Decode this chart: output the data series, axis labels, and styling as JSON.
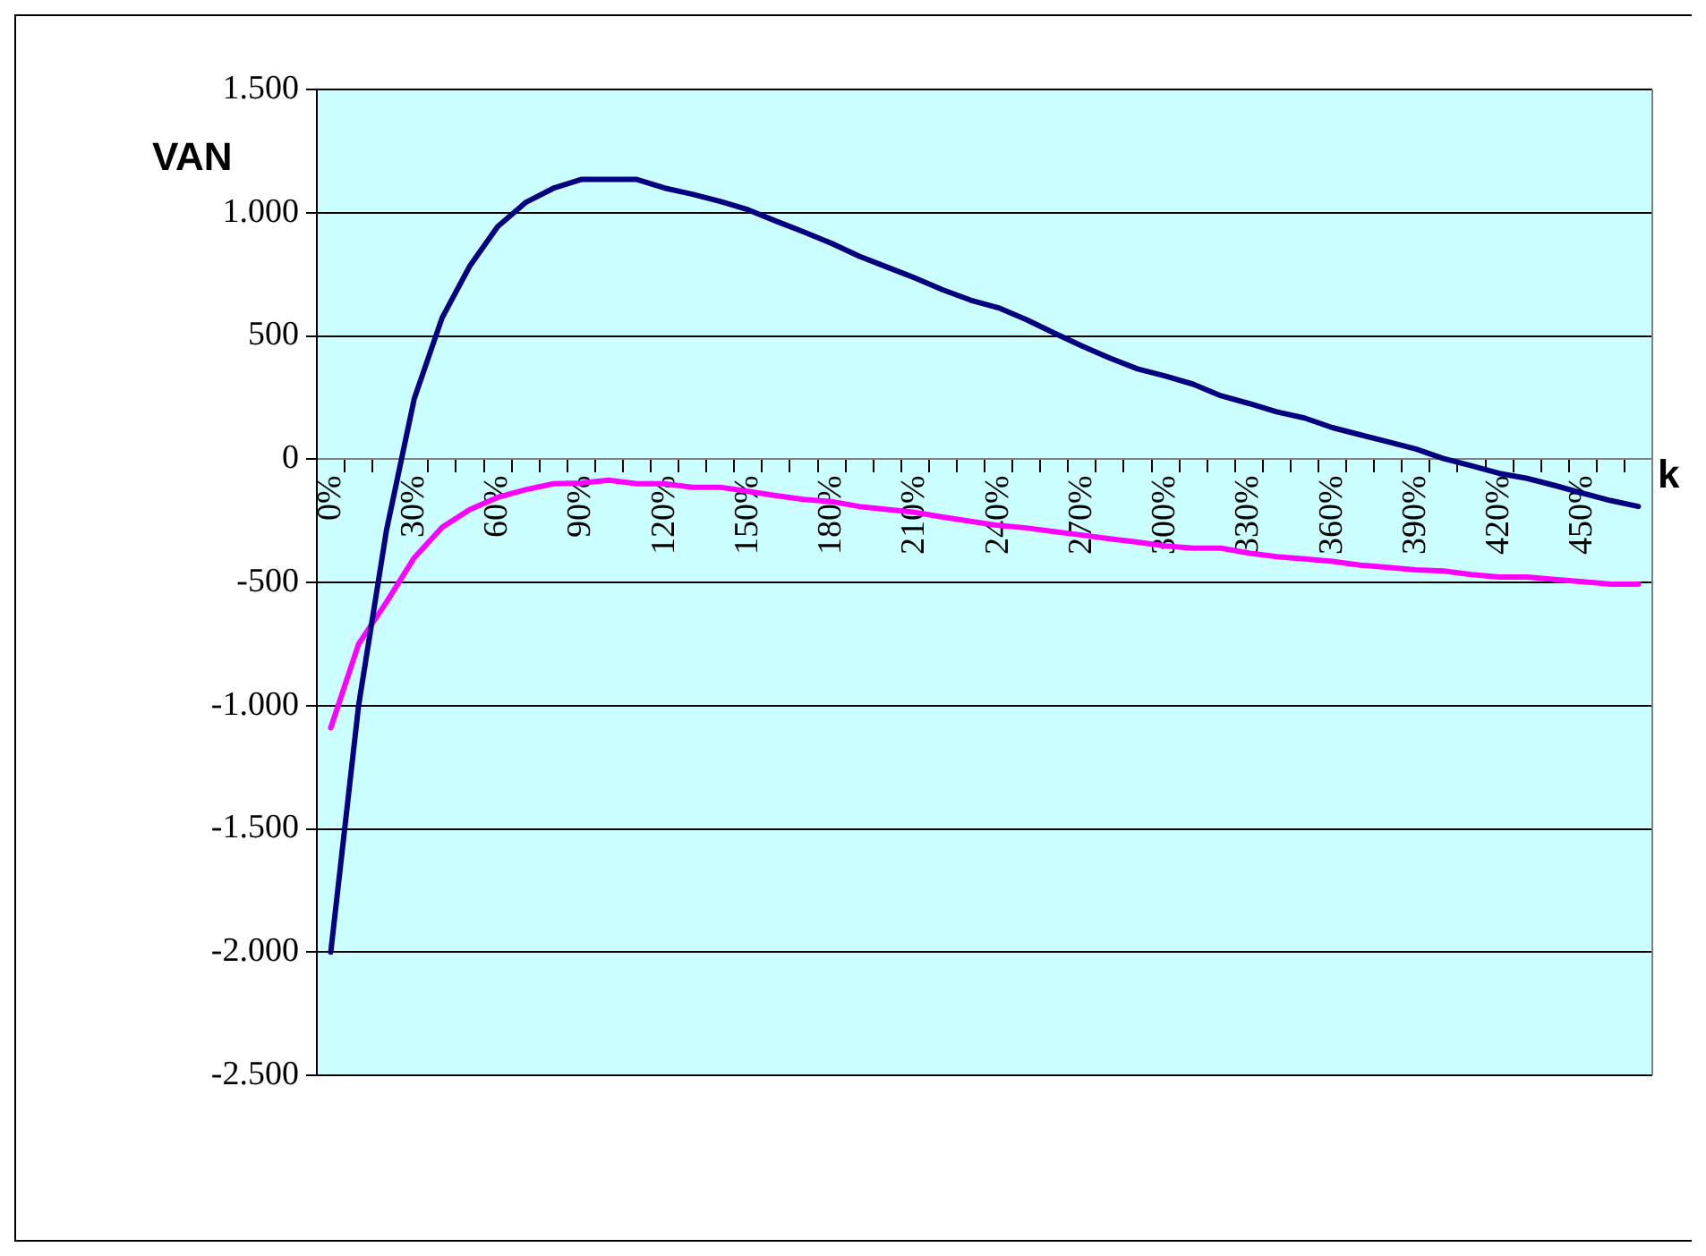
{
  "chart_data": {
    "type": "line",
    "xlabel": "k",
    "ylabel": "VAN",
    "categories": [
      "0%",
      null,
      null,
      "30%",
      null,
      null,
      "60%",
      null,
      null,
      "90%",
      null,
      null,
      "120%",
      null,
      null,
      "150%",
      null,
      null,
      "180%",
      null,
      null,
      "210%",
      null,
      null,
      "240%",
      null,
      null,
      "270%",
      null,
      null,
      "300%",
      null,
      null,
      "330%",
      null,
      null,
      "360%",
      null,
      null,
      "390%",
      null,
      null,
      "420%",
      null,
      null,
      "450%",
      null,
      null
    ],
    "series": [
      {
        "color": "#000080",
        "values": [
          -2000,
          -1000,
          -290,
          245,
          573,
          784,
          944,
          1041,
          1099,
          1135,
          1135,
          1135,
          1100,
          1075,
          1046,
          1012,
          966,
          922,
          876,
          823,
          779,
          735,
          687,
          645,
          614,
          566,
          512,
          459,
          410,
          366,
          337,
          304,
          257,
          226,
          192,
          167,
          128,
          99,
          70,
          41,
          2,
          -27,
          -58,
          -78,
          -107,
          -138,
          -168,
          -192
        ]
      },
      {
        "color": "#ff00ff",
        "values": [
          -1090,
          -750,
          -580,
          -400,
          -277,
          -204,
          -155,
          -124,
          -100,
          -97,
          -85,
          -100,
          -100,
          -114,
          -114,
          -131,
          -148,
          -163,
          -172,
          -192,
          -204,
          -216,
          -235,
          -252,
          -269,
          -279,
          -294,
          -308,
          -323,
          -337,
          -352,
          -361,
          -361,
          -381,
          -396,
          -405,
          -415,
          -430,
          -439,
          -449,
          -454,
          -468,
          -478,
          -478,
          -488,
          -497,
          -507,
          -507
        ]
      }
    ],
    "ylim": [
      -2500,
      1500
    ],
    "yticks": [
      {
        "value": -2500,
        "label": "-2.500"
      },
      {
        "value": -2000,
        "label": "-2.000"
      },
      {
        "value": -1500,
        "label": "-1.500"
      },
      {
        "value": -1000,
        "label": "-1.000"
      },
      {
        "value": -500,
        "label": "-500"
      },
      {
        "value": 0,
        "label": "0"
      },
      {
        "value": 500,
        "label": "500"
      },
      {
        "value": 1000,
        "label": "1.000"
      },
      {
        "value": 1500,
        "label": "1.500"
      }
    ],
    "grid": "y",
    "legend": false,
    "marker": "none",
    "line_style": "solid"
  }
}
